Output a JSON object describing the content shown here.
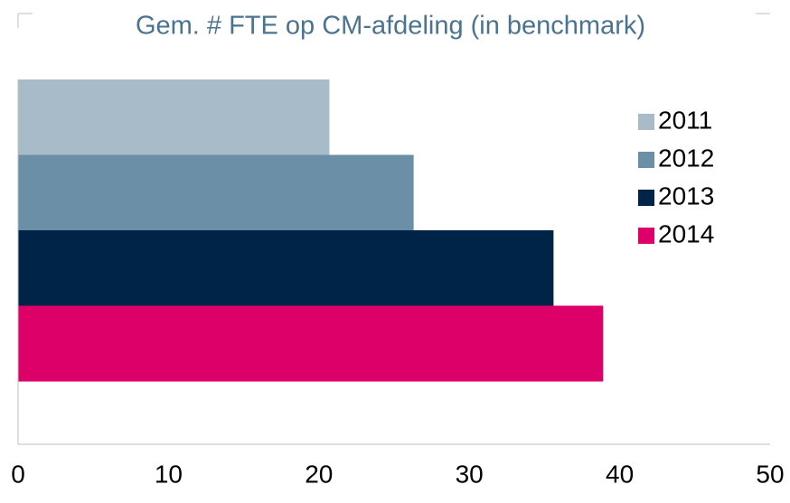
{
  "chart_data": {
    "type": "bar",
    "orientation": "horizontal",
    "title": "Gem. # FTE op CM-afdeling (in benchmark)",
    "categories": [
      null
    ],
    "series": [
      {
        "name": "2011",
        "color": "#a7bcc8",
        "values": [
          20.7
        ]
      },
      {
        "name": "2012",
        "color": "#6b8fa6",
        "values": [
          26.3
        ]
      },
      {
        "name": "2013",
        "color": "#002448",
        "values": [
          35.6
        ]
      },
      {
        "name": "2014",
        "color": "#dc0068",
        "values": [
          38.9
        ]
      }
    ],
    "xlim": [
      0,
      50
    ],
    "xticks": [
      0,
      10,
      20,
      30,
      40,
      50
    ],
    "grid": false,
    "legend": "right"
  }
}
